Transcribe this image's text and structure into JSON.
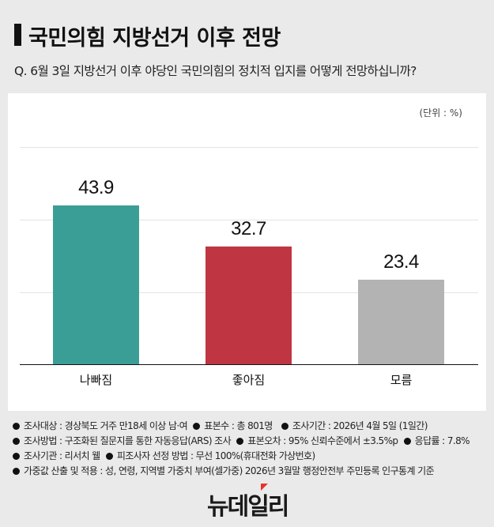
{
  "header": {
    "title": "국민의힘 지방선거 이후 전망",
    "question": "Q. 6월 3일 지방선거 이후 야당인 국민의힘의 정치적 입지를 어떻게 전망하십니까?"
  },
  "chart": {
    "unit": "(단위 : %)",
    "colors": {
      "bad": "#3b9e96",
      "good": "#c03542",
      "unknown": "#b3b3b3",
      "background": "#eaeaea"
    }
  },
  "chart_data": {
    "type": "bar",
    "title": "국민의힘 지방선거 이후 전망",
    "subtitle": "Q. 6월 3일 지방선거 이후 야당인 국민의힘의 정치적 입지를 어떻게 전망하십니까?",
    "categories": [
      "나빠짐",
      "좋아짐",
      "모름"
    ],
    "values": [
      43.9,
      32.7,
      23.4
    ],
    "value_labels": [
      "43.9",
      "32.7",
      "23.4"
    ],
    "colors": [
      "#3b9e96",
      "#c03542",
      "#b3b3b3"
    ],
    "unit": "%",
    "xlabel": "",
    "ylabel": "",
    "ylim": [
      0,
      60
    ],
    "grid": true,
    "legend": null
  },
  "notes": [
    [
      "조사대상 : 경상북도 거주 만18세 이상 남·여",
      "표본수 : 총 801명",
      "조사기간 : 2026년 4월 5일 (1일간)"
    ],
    [
      "조사방법 : 구조화된 질문지를 통한 자동응답(ARS) 조사",
      "표본오차 : 95% 신뢰수준에서 ±3.5%p",
      "응답률 : 7.8%"
    ],
    [
      "조사기관 : 리서치 웰",
      "피조사자 선정 방법 : 무선 100%(휴대전화 가상번호)"
    ],
    [
      "가중값 산출 및 적용 : 성, 연령, 지역별 가중치 부여(셀가중)  2026년 3월말 행정안전부 주민등록 인구통계 기준"
    ]
  ],
  "footer": {
    "logo": "뉴데일리"
  }
}
